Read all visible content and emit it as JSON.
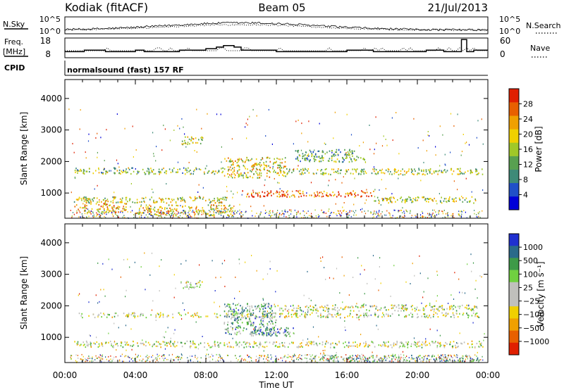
{
  "header": {
    "station": "Kodiak (fitACF)",
    "beam": "Beam 05",
    "date": "21/Jul/2013"
  },
  "chart_data": [
    {
      "type": "line",
      "panel": "noise",
      "left_label": "N.Sky",
      "right_label": "N.Search",
      "left_ticks": [
        "10^5",
        "10^0"
      ],
      "right_ticks": [
        "10^5",
        "10^0"
      ],
      "x_range_hours": [
        0,
        24
      ]
    },
    {
      "type": "line",
      "panel": "frequency",
      "left_label_line1": "Freq.",
      "left_label_line2": "[MHz]",
      "right_label": "Nave",
      "left_ticks": [
        18,
        8
      ],
      "right_ticks": [
        60,
        0
      ],
      "freq_steps": [
        {
          "t": 0,
          "v": 10
        },
        {
          "t": 1.1,
          "v": 11
        },
        {
          "t": 2.3,
          "v": 10
        },
        {
          "t": 4.0,
          "v": 11
        },
        {
          "t": 4.5,
          "v": 10
        },
        {
          "t": 6.5,
          "v": 11
        },
        {
          "t": 8.0,
          "v": 12
        },
        {
          "t": 8.6,
          "v": 13
        },
        {
          "t": 9.0,
          "v": 14
        },
        {
          "t": 9.6,
          "v": 13
        },
        {
          "t": 10.0,
          "v": 11
        },
        {
          "t": 12.0,
          "v": 10
        },
        {
          "t": 16.0,
          "v": 11
        },
        {
          "t": 17.5,
          "v": 10
        },
        {
          "t": 20.5,
          "v": 11
        },
        {
          "t": 21.5,
          "v": 10
        },
        {
          "t": 22.5,
          "v": 18
        },
        {
          "t": 22.8,
          "v": 10
        },
        {
          "t": 23.2,
          "v": 11
        },
        {
          "t": 24,
          "v": 11
        }
      ]
    },
    {
      "type": "heatmap",
      "panel": "power",
      "cpid_label": "CPID",
      "cpid_text": "normalsound (fast) 157 RF",
      "ylabel": "Slant Range [km]",
      "ylim": [
        200,
        4600
      ],
      "yticks": [
        1000,
        2000,
        3000,
        4000
      ],
      "colorbar_label": "Power [dB]",
      "colorbar_ticks": [
        4,
        8,
        12,
        16,
        20,
        24,
        28
      ],
      "colors": [
        "#0000d8",
        "#2050c8",
        "#3e8a78",
        "#58a050",
        "#a0c828",
        "#f0d000",
        "#f0a000",
        "#e86000",
        "#e02000"
      ],
      "bands": [
        {
          "t0": 0.5,
          "t1": 9.0,
          "r0": 1620,
          "r1": 1820,
          "level": 0.45
        },
        {
          "t0": 9.0,
          "t1": 12.5,
          "r0": 1500,
          "r1": 2150,
          "level": 0.6
        },
        {
          "t0": 12.5,
          "t1": 23.7,
          "r0": 1600,
          "r1": 1800,
          "level": 0.5
        },
        {
          "t0": 10.0,
          "t1": 17.5,
          "r0": 900,
          "r1": 1100,
          "level": 0.85
        },
        {
          "t0": 0.5,
          "t1": 9.5,
          "r0": 700,
          "r1": 900,
          "level": 0.55
        },
        {
          "t0": 17.5,
          "t1": 23.5,
          "r0": 700,
          "r1": 900,
          "level": 0.5
        },
        {
          "t0": 0.5,
          "t1": 3.5,
          "r0": 400,
          "r1": 700,
          "level": 0.7
        },
        {
          "t0": 4.0,
          "t1": 9.5,
          "r0": 300,
          "r1": 650,
          "level": 0.6
        },
        {
          "t0": 13.0,
          "t1": 17.0,
          "r0": 2000,
          "r1": 2400,
          "level": 0.35
        },
        {
          "t0": 6.5,
          "t1": 7.8,
          "r0": 2550,
          "r1": 2800,
          "level": 0.55
        }
      ]
    },
    {
      "type": "heatmap",
      "panel": "velocity",
      "ylabel": "Slant Range [km]",
      "ylim": [
        200,
        4600
      ],
      "yticks": [
        1000,
        2000,
        3000,
        4000
      ],
      "xlabel": "Time UT",
      "xticks": [
        "00:00",
        "04:00",
        "08:00",
        "12:00",
        "16:00",
        "20:00",
        "00:00"
      ],
      "colorbar_label": "Velocity [m s⁻¹]",
      "colorbar_ticks": [
        "1000",
        "500",
        "100",
        "25",
        "−25",
        "−100",
        "−500",
        "−1000"
      ],
      "colors": [
        "#2030d0",
        "#2a6a8a",
        "#3e9a48",
        "#70d040",
        "#c0c0bc",
        "#c0c0bc",
        "#f0d000",
        "#f0a000",
        "#e86000",
        "#e02000"
      ],
      "bands": [
        {
          "t0": 0.5,
          "t1": 23.7,
          "r0": 1650,
          "r1": 1800,
          "level": 0.5
        },
        {
          "t0": 0.5,
          "t1": 23.7,
          "r0": 700,
          "r1": 900,
          "level": 0.5
        },
        {
          "t0": 9.0,
          "t1": 12.0,
          "r0": 1100,
          "r1": 2100,
          "level": 0.3
        },
        {
          "t0": 10.5,
          "t1": 13.0,
          "r0": 1050,
          "r1": 1350,
          "level": 0.25
        },
        {
          "t0": 12.0,
          "t1": 23.5,
          "r0": 1850,
          "r1": 2050,
          "level": 0.5
        },
        {
          "t0": 14.0,
          "t1": 23.5,
          "r0": 250,
          "r1": 450,
          "level": 0.35
        },
        {
          "t0": 6.5,
          "t1": 7.8,
          "r0": 2550,
          "r1": 2800,
          "level": 0.55
        }
      ]
    }
  ]
}
